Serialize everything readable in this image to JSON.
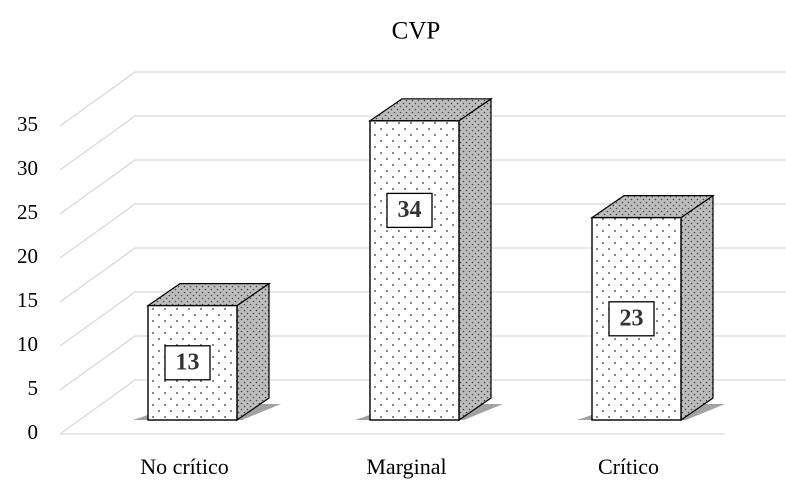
{
  "chart_data": {
    "type": "bar3d",
    "title": "CVP",
    "categories": [
      "No crítico",
      "Marginal",
      "Crítico"
    ],
    "values": [
      13,
      34,
      23
    ],
    "ylim": [
      0,
      35
    ],
    "yticks": [
      0,
      5,
      10,
      15,
      20,
      25,
      30,
      35
    ],
    "grid": true
  }
}
